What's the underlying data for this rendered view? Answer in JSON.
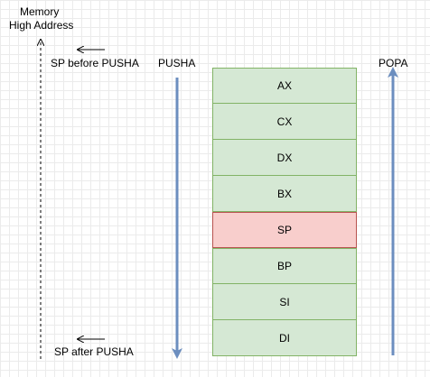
{
  "memory_label": "Memory",
  "high_address_label": "High Address",
  "sp_before_label": "SP before PUSHA",
  "sp_after_label": "SP after PUSHA",
  "pusha_label": "PUSHA",
  "popa_label": "POPA",
  "stack_registers": [
    {
      "name": "AX",
      "fill": "#d5e8d4",
      "stroke": "#82b366"
    },
    {
      "name": "CX",
      "fill": "#d5e8d4",
      "stroke": "#82b366"
    },
    {
      "name": "DX",
      "fill": "#d5e8d4",
      "stroke": "#82b366"
    },
    {
      "name": "BX",
      "fill": "#d5e8d4",
      "stroke": "#82b366"
    },
    {
      "name": "SP",
      "fill": "#f8cecc",
      "stroke": "#b85450"
    },
    {
      "name": "BP",
      "fill": "#d5e8d4",
      "stroke": "#82b366"
    },
    {
      "name": "SI",
      "fill": "#d5e8d4",
      "stroke": "#82b366"
    },
    {
      "name": "DI",
      "fill": "#d5e8d4",
      "stroke": "#82b366"
    }
  ],
  "colors": {
    "arrow_blue": "#6c8ebf",
    "dashed_line": "#000000"
  }
}
